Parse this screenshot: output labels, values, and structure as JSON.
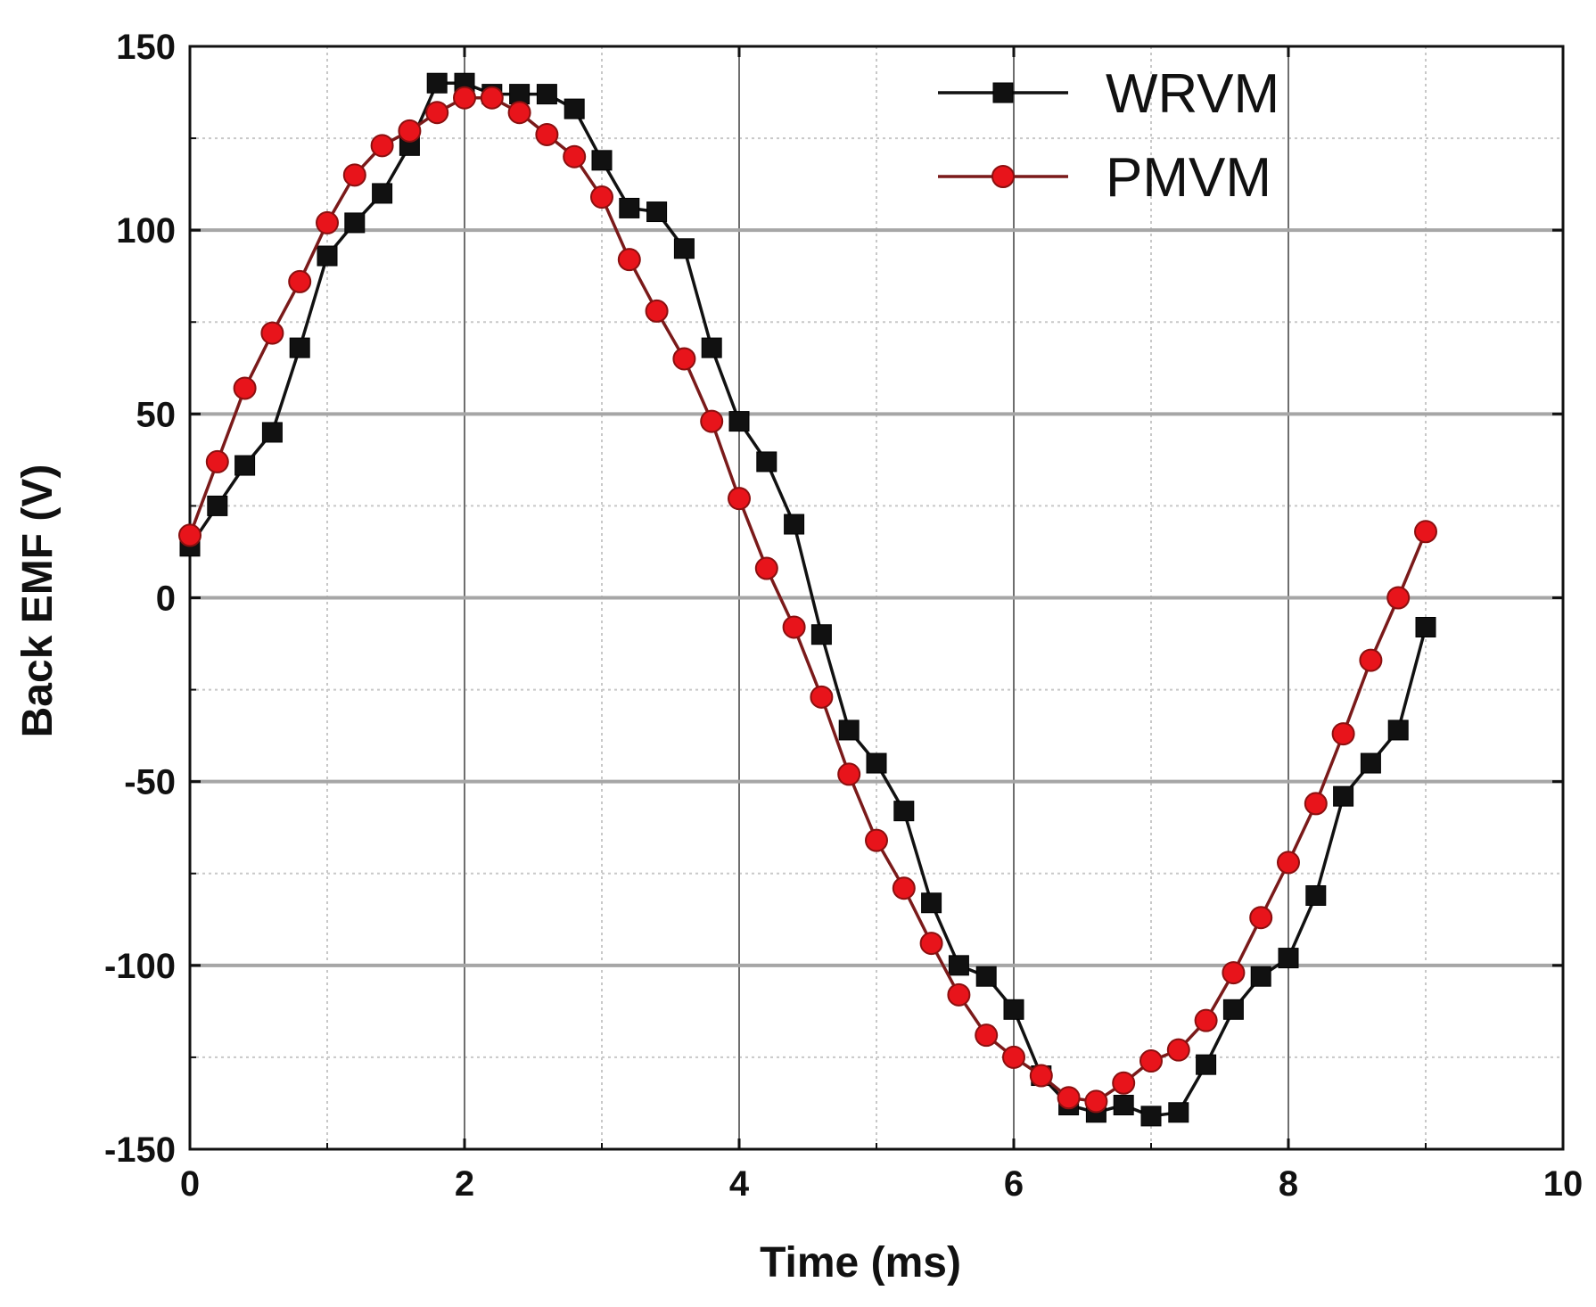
{
  "chart_data": {
    "type": "line",
    "title": "",
    "xlabel": "Time (ms)",
    "ylabel": "Back EMF (V)",
    "xlim": [
      0,
      10
    ],
    "ylim": [
      -150,
      150
    ],
    "xticks": [
      0,
      2,
      4,
      6,
      8,
      10
    ],
    "yticks": [
      -150,
      -100,
      -50,
      0,
      50,
      100,
      150
    ],
    "xtick_labels": [
      "0",
      "2",
      "4",
      "6",
      "8",
      "10"
    ],
    "ytick_labels": [
      "-150",
      "-100",
      "-50",
      "0",
      "50",
      "100",
      "150"
    ],
    "grid": true,
    "legend_position": "top-right",
    "series": [
      {
        "name": "WRVM",
        "color": "#111111",
        "line_color": "#111111",
        "marker": "square",
        "x": [
          0,
          0.2,
          0.4,
          0.6,
          0.8,
          1.0,
          1.2,
          1.4,
          1.6,
          1.8,
          2.0,
          2.2,
          2.4,
          2.6,
          2.8,
          3.0,
          3.2,
          3.4,
          3.6,
          3.8,
          4.0,
          4.2,
          4.4,
          4.6,
          4.8,
          5.0,
          5.2,
          5.4,
          5.6,
          5.8,
          6.0,
          6.2,
          6.4,
          6.6,
          6.8,
          7.0,
          7.2,
          7.4,
          7.6,
          7.8,
          8.0,
          8.2,
          8.4,
          8.6,
          8.8,
          9.0
        ],
        "y": [
          14,
          25,
          36,
          45,
          68,
          93,
          102,
          110,
          123,
          140,
          140,
          137,
          137,
          137,
          133,
          119,
          106,
          105,
          95,
          68,
          48,
          37,
          20,
          -10,
          -36,
          -45,
          -58,
          -83,
          -100,
          -103,
          -112,
          -130,
          -138,
          -140,
          -138,
          -141,
          -140,
          -127,
          -112,
          -103,
          -98,
          -81,
          -54,
          -45,
          -36,
          -8
        ]
      },
      {
        "name": "PMVM",
        "color": "#e8141b",
        "line_color": "#7a1a1a",
        "marker": "circle",
        "x": [
          0,
          0.2,
          0.4,
          0.6,
          0.8,
          1.0,
          1.2,
          1.4,
          1.6,
          1.8,
          2.0,
          2.2,
          2.4,
          2.6,
          2.8,
          3.0,
          3.2,
          3.4,
          3.6,
          3.8,
          4.0,
          4.2,
          4.4,
          4.6,
          4.8,
          5.0,
          5.2,
          5.4,
          5.6,
          5.8,
          6.0,
          6.2,
          6.4,
          6.6,
          6.8,
          7.0,
          7.2,
          7.4,
          7.6,
          7.8,
          8.0,
          8.2,
          8.4,
          8.6,
          8.8,
          9.0
        ],
        "y": [
          17,
          37,
          57,
          72,
          86,
          102,
          115,
          123,
          127,
          132,
          136,
          136,
          132,
          126,
          120,
          109,
          92,
          78,
          65,
          48,
          27,
          8,
          -8,
          -27,
          -48,
          -66,
          -79,
          -94,
          -108,
          -119,
          -125,
          -130,
          -136,
          -137,
          -132,
          -126,
          -123,
          -115,
          -102,
          -87,
          -72,
          -56,
          -37,
          -17,
          0,
          18
        ]
      }
    ]
  }
}
